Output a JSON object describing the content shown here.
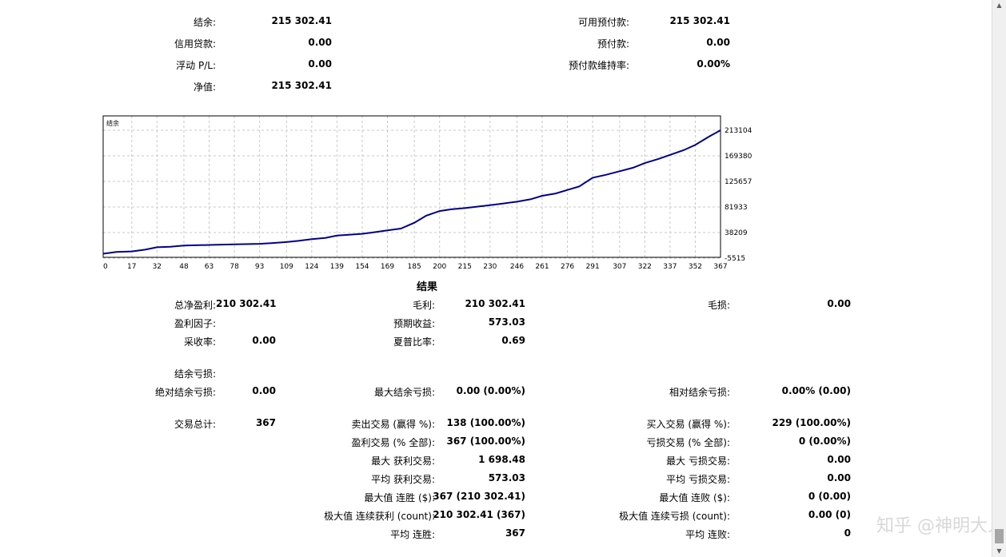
{
  "summary": {
    "balance_label": "结余:",
    "balance_value": "215 302.41",
    "credit_label": "信用贷款:",
    "credit_value": "0.00",
    "floating_label": "浮动 P/L:",
    "floating_value": "0.00",
    "equity_label": "净值:",
    "equity_value": "215 302.41",
    "free_margin_label": "可用预付款:",
    "free_margin_value": "215 302.41",
    "margin_label": "预付款:",
    "margin_value": "0.00",
    "margin_level_label": "预付款维持率:",
    "margin_level_value": "0.00%"
  },
  "chart_data": {
    "type": "line",
    "legend": "结余",
    "x_ticks": [
      "0",
      "17",
      "32",
      "48",
      "63",
      "78",
      "93",
      "109",
      "124",
      "139",
      "154",
      "169",
      "185",
      "200",
      "215",
      "230",
      "246",
      "261",
      "276",
      "291",
      "307",
      "322",
      "337",
      "352",
      "367"
    ],
    "y_ticks": [
      "213104",
      "169380",
      "125657",
      "81933",
      "38209",
      "-5515"
    ],
    "xlim": [
      0,
      367
    ],
    "ylim": [
      -5515,
      213104
    ],
    "line_color": "#00008b",
    "series": [
      {
        "x": [
          0,
          8,
          17,
          25,
          32,
          40,
          48,
          63,
          78,
          93,
          100,
          109,
          116,
          124,
          132,
          139,
          154,
          162,
          169,
          177,
          185,
          192,
          200,
          207,
          215,
          230,
          238,
          246,
          254,
          261,
          269,
          276,
          283,
          291,
          299,
          307,
          315,
          322,
          330,
          337,
          345,
          352,
          360,
          367
        ],
        "y": [
          2000,
          5000,
          6000,
          9000,
          13000,
          14000,
          16000,
          17000,
          18000,
          19000,
          20000,
          22000,
          24000,
          27000,
          29000,
          33000,
          36000,
          39000,
          42000,
          45000,
          55000,
          67000,
          75000,
          78000,
          80000,
          85000,
          88000,
          91000,
          95000,
          101000,
          105000,
          111000,
          117000,
          132000,
          137000,
          143000,
          149000,
          157000,
          164000,
          171000,
          179000,
          188000,
          202000,
          213104
        ]
      }
    ]
  },
  "results": {
    "title": "结果",
    "net_profit_label": "总净盈利:",
    "net_profit_value": "210 302.41",
    "gross_profit_label": "毛利:",
    "gross_profit_value": "210 302.41",
    "gross_loss_label": "毛损:",
    "gross_loss_value": "0.00",
    "profit_factor_label": "盈利因子:",
    "expected_payoff_label": "预期收益:",
    "expected_payoff_value": "573.03",
    "recovery_label": "采收率:",
    "recovery_value": "0.00",
    "sharpe_label": "夏普比率:",
    "sharpe_value": "0.69",
    "balance_drawdown_label": "结余亏损:",
    "abs_dd_label": "绝对结余亏损:",
    "abs_dd_value": "0.00",
    "max_dd_label": "最大结余亏损:",
    "max_dd_value": "0.00 (0.00%)",
    "rel_dd_label": "相对结余亏损:",
    "rel_dd_value": "0.00% (0.00)",
    "total_trades_label": "交易总计:",
    "total_trades_value": "367",
    "short_label": "卖出交易 (赢得 %):",
    "short_value": "138 (100.00%)",
    "long_label": "买入交易 (赢得 %):",
    "long_value": "229 (100.00%)",
    "profit_trades_label": "盈利交易 (% 全部):",
    "profit_trades_value": "367 (100.00%)",
    "loss_trades_label": "亏损交易 (% 全部):",
    "loss_trades_value": "0 (0.00%)",
    "largest_profit_label": "最大 获利交易:",
    "largest_profit_value": "1 698.48",
    "largest_loss_label": "最大 亏损交易:",
    "largest_loss_value": "0.00",
    "avg_profit_label": "平均 获利交易:",
    "avg_profit_value": "573.03",
    "avg_loss_label": "平均 亏损交易:",
    "avg_loss_value": "0.00",
    "max_cons_wins_label": "最大值 连胜 ($):",
    "max_cons_wins_value": "367 (210 302.41)",
    "max_cons_losses_label": "最大值 连败 ($):",
    "max_cons_losses_value": "0 (0.00)",
    "max_cons_profit_label": "极大值 连续获利 (count):",
    "max_cons_profit_value": "210 302.41 (367)",
    "max_cons_loss_label": "极大值 连续亏损 (count):",
    "max_cons_loss_value": "0.00 (0)",
    "avg_cons_wins_label": "平均 连胜:",
    "avg_cons_wins_value": "367",
    "avg_cons_losses_label": "平均 连败:",
    "avg_cons_losses_value": "0"
  },
  "watermark": "知乎 @神明大人"
}
